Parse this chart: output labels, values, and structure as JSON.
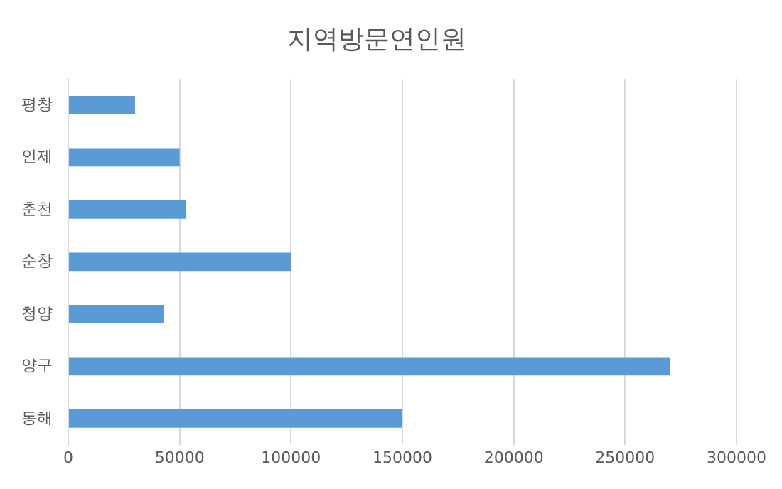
{
  "chart_data": {
    "type": "bar",
    "orientation": "horizontal",
    "title": "지역방문연인원",
    "categories": [
      "평창",
      "인제",
      "춘천",
      "순창",
      "청양",
      "양구",
      "동해"
    ],
    "values": [
      30000,
      50000,
      53000,
      100000,
      43000,
      270000,
      150000
    ],
    "color": "#5b9bd5",
    "xlim": [
      0,
      300000
    ],
    "xticks": [
      0,
      50000,
      100000,
      150000,
      200000,
      250000,
      300000
    ],
    "grid": "x"
  }
}
